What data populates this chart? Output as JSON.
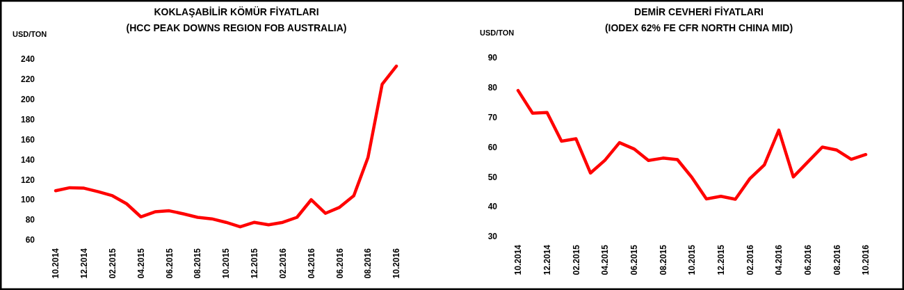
{
  "chart_data": [
    {
      "type": "line",
      "title": "KOKLAŞABİLİR KÖMÜR FİYATLARI",
      "subtitle": "(HCC PEAK DOWNS REGION FOB AUSTRALIA)",
      "ylabel": "USD/TON",
      "categories": [
        "10.2014",
        null,
        "12.2014",
        null,
        "02.2015",
        null,
        "04.2015",
        null,
        "06.2015",
        null,
        "08.2015",
        null,
        "10.2015",
        null,
        "12.2015",
        null,
        "02.2016",
        null,
        "04.2016",
        null,
        "06.2016",
        null,
        "08.2016",
        null,
        "10.2016"
      ],
      "series": [
        {
          "color": "#ff0000",
          "values": [
            109,
            112,
            111.5,
            108,
            104,
            96,
            83,
            88,
            89,
            86,
            82.5,
            81,
            77.5,
            73,
            77.5,
            75,
            77.5,
            82.5,
            100,
            86.5,
            92.5,
            104,
            142,
            215,
            233
          ]
        }
      ],
      "ylim": [
        60,
        240
      ],
      "yticks": [
        60,
        80,
        100,
        120,
        140,
        160,
        180,
        200,
        220,
        240
      ],
      "grid": false
    },
    {
      "type": "line",
      "title": "DEMİR CEVHERİ FİYATLARI",
      "subtitle": "(IODEX 62% FE CFR NORTH CHINA MID)",
      "ylabel": "USD/TON",
      "categories": [
        "10.2014",
        null,
        "12.2014",
        null,
        "02.2015",
        null,
        "04.2015",
        null,
        "06.2015",
        null,
        "08.2015",
        null,
        "10.2015",
        null,
        "12.2015",
        null,
        "02.2016",
        null,
        "04.2016",
        null,
        "06.2016",
        null,
        "08.2016",
        null,
        "10.2016"
      ],
      "series": [
        {
          "color": "#ff0000",
          "values": [
            79,
            71.4,
            71.6,
            62,
            62.8,
            51.3,
            55.6,
            61.5,
            59.4,
            55.5,
            56.3,
            55.8,
            49.8,
            42.6,
            43.5,
            42.5,
            49.4,
            54,
            65.7,
            50,
            55,
            60,
            59,
            55.9,
            57.5
          ]
        }
      ],
      "ylim": [
        30,
        90
      ],
      "yticks": [
        30,
        40,
        50,
        60,
        70,
        80,
        90
      ],
      "grid": false
    }
  ]
}
